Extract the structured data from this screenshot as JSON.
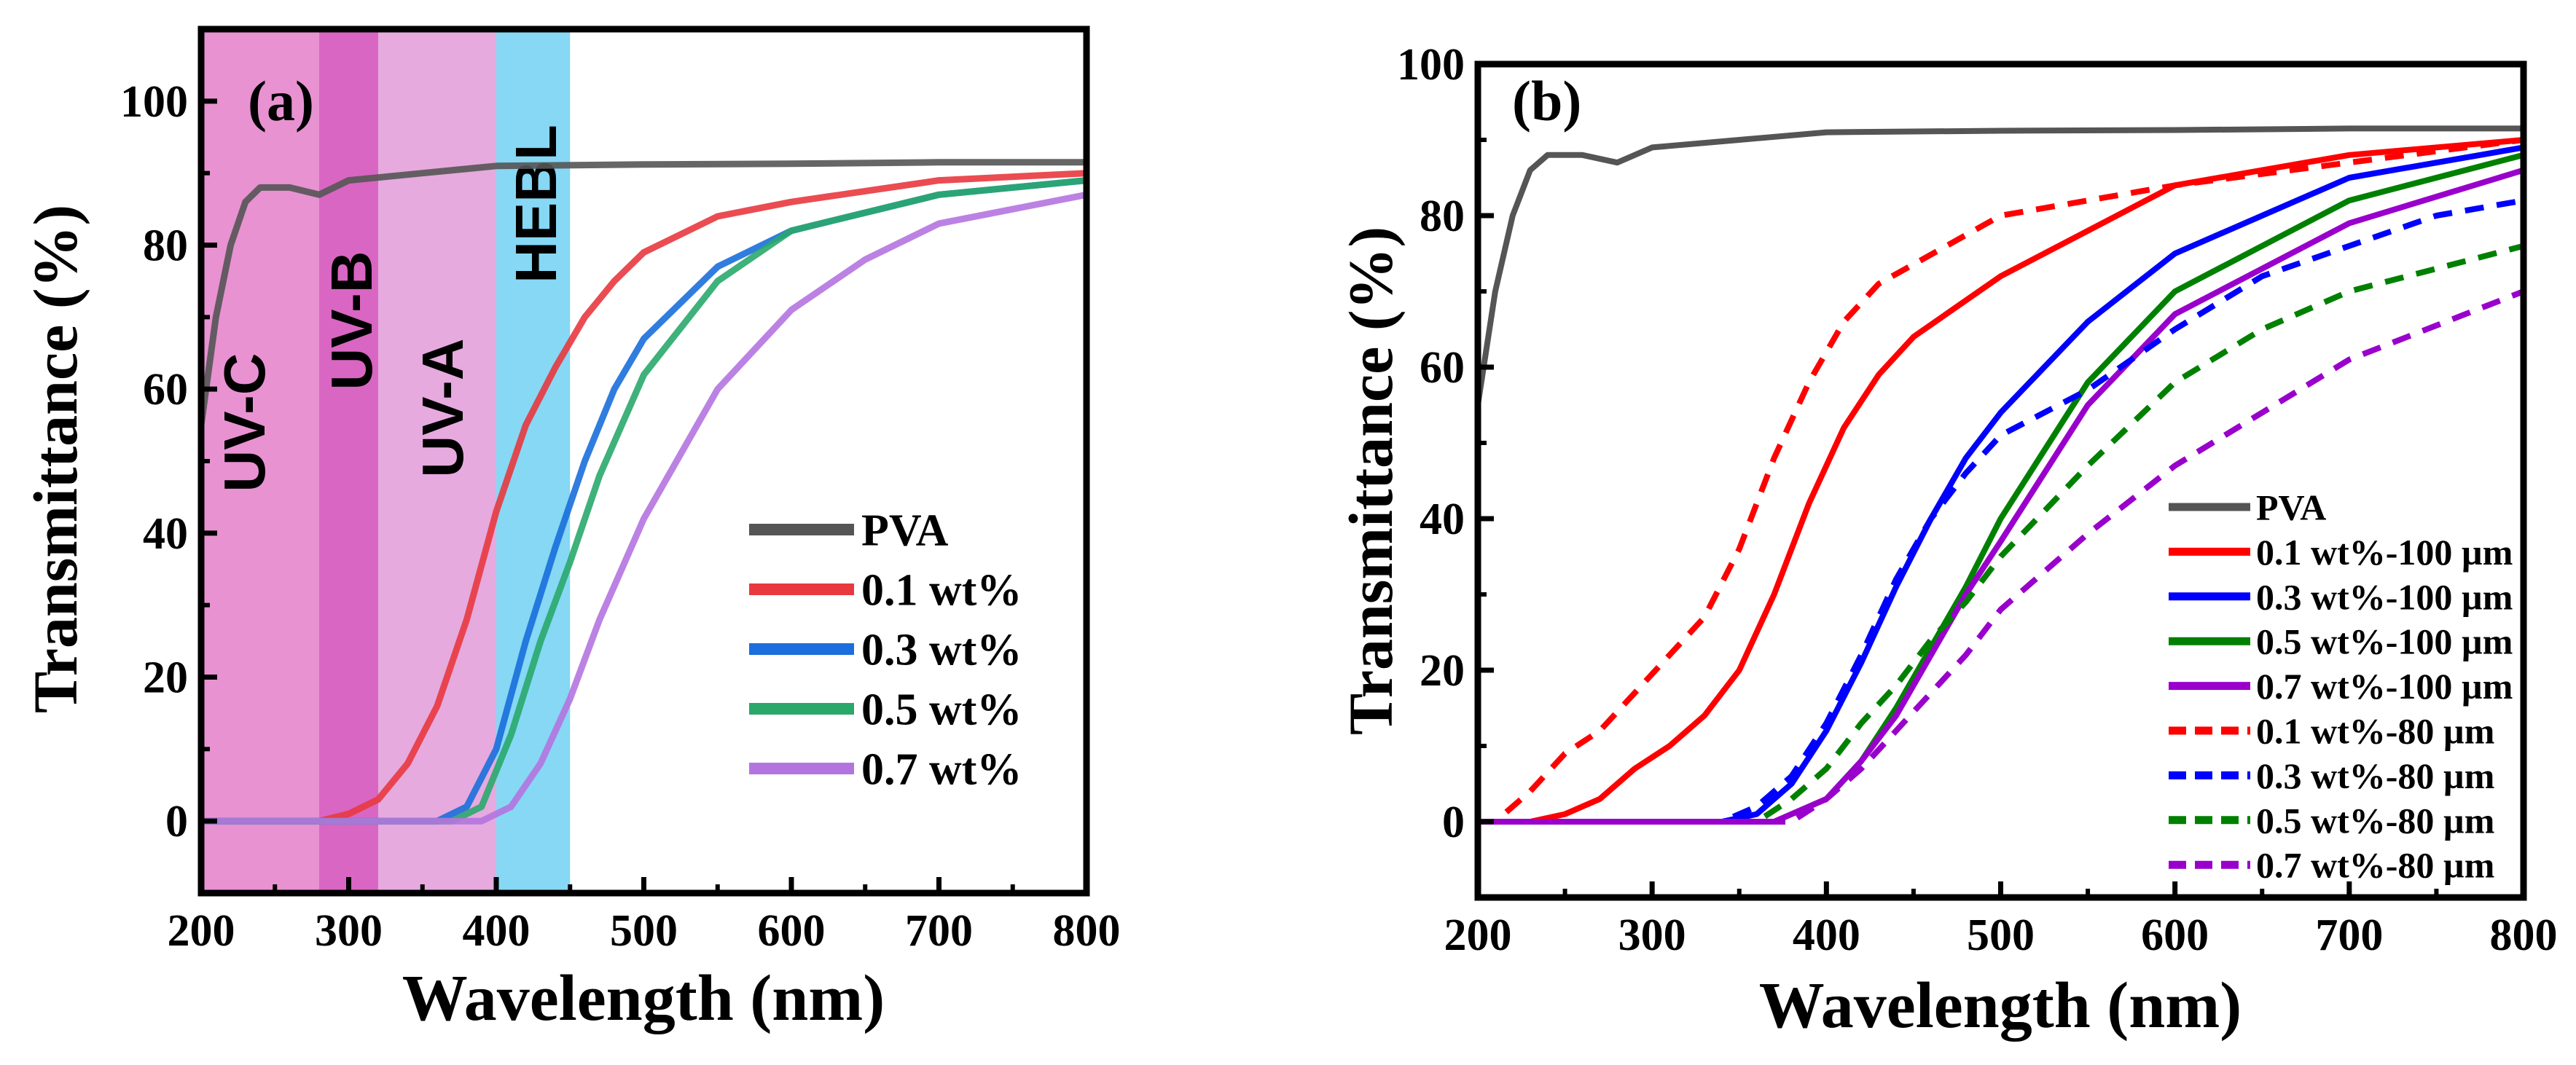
{
  "chart_data": [
    {
      "type": "line",
      "panel_label": "(a)",
      "xlabel": "Wavelength (nm)",
      "ylabel": "Transmittance (%)",
      "xlim": [
        200,
        800
      ],
      "ylim": [
        -10,
        110
      ],
      "xticks": [
        200,
        300,
        400,
        500,
        600,
        700,
        800
      ],
      "yticks": [
        0,
        20,
        40,
        60,
        80,
        100
      ],
      "legend_position": "center-right",
      "bands": [
        {
          "label": "UV-C",
          "range": [
            200,
            280
          ],
          "color": "#e892d2"
        },
        {
          "label": "UV-B",
          "range": [
            280,
            320
          ],
          "color": "#d966c2"
        },
        {
          "label": "UV-A",
          "range": [
            320,
            400
          ],
          "color": "#e6aadf"
        },
        {
          "label": "HEBL",
          "range": [
            400,
            450
          ],
          "color": "#86d8f4"
        }
      ],
      "series": [
        {
          "name": "PVA",
          "color": "#555555",
          "dash": false,
          "x": [
            200,
            210,
            220,
            230,
            240,
            260,
            280,
            300,
            350,
            400,
            500,
            600,
            700,
            800
          ],
          "y": [
            55,
            70,
            80,
            86,
            88,
            88,
            87,
            89,
            90,
            91,
            91.2,
            91.3,
            91.5,
            91.5
          ]
        },
        {
          "name": "0.1 wt%",
          "color": "#e8393f",
          "dash": false,
          "x": [
            200,
            280,
            300,
            320,
            340,
            360,
            380,
            400,
            420,
            440,
            460,
            480,
            500,
            550,
            600,
            700,
            800
          ],
          "y": [
            0,
            0,
            1,
            3,
            8,
            16,
            28,
            43,
            55,
            63,
            70,
            75,
            79,
            84,
            86,
            89,
            90
          ]
        },
        {
          "name": "0.3 wt%",
          "color": "#1a6fdc",
          "dash": false,
          "x": [
            200,
            360,
            380,
            400,
            420,
            440,
            460,
            480,
            500,
            550,
            600,
            700,
            800
          ],
          "y": [
            0,
            0,
            2,
            10,
            25,
            38,
            50,
            60,
            67,
            77,
            82,
            87,
            89
          ]
        },
        {
          "name": "0.5 wt%",
          "color": "#2aa86b",
          "dash": false,
          "x": [
            200,
            370,
            390,
            410,
            430,
            450,
            470,
            500,
            550,
            600,
            700,
            800
          ],
          "y": [
            0,
            0,
            2,
            12,
            25,
            36,
            48,
            62,
            75,
            82,
            87,
            89
          ]
        },
        {
          "name": "0.7 wt%",
          "color": "#b474e0",
          "dash": false,
          "x": [
            200,
            390,
            410,
            430,
            450,
            470,
            500,
            550,
            600,
            650,
            700,
            800
          ],
          "y": [
            0,
            0,
            2,
            8,
            17,
            28,
            42,
            60,
            71,
            78,
            83,
            87
          ]
        }
      ]
    },
    {
      "type": "line",
      "panel_label": "(b)",
      "xlabel": "Wavelength (nm)",
      "ylabel": "Transmittance (%)",
      "xlim": [
        200,
        800
      ],
      "ylim": [
        -10,
        100
      ],
      "xticks": [
        200,
        300,
        400,
        500,
        600,
        700,
        800
      ],
      "yticks": [
        0,
        20,
        40,
        60,
        80,
        100
      ],
      "legend_position": "bottom-right",
      "series": [
        {
          "name": "PVA",
          "color": "#555555",
          "dash": false,
          "x": [
            200,
            210,
            220,
            230,
            240,
            260,
            280,
            300,
            350,
            400,
            500,
            600,
            700,
            800
          ],
          "y": [
            55,
            70,
            80,
            86,
            88,
            88,
            87,
            89,
            90,
            91,
            91.2,
            91.3,
            91.5,
            91.5
          ]
        },
        {
          "name": "0.1 wt%-100 µm",
          "color": "#ff0000",
          "dash": false,
          "x": [
            200,
            230,
            250,
            270,
            290,
            310,
            330,
            350,
            370,
            390,
            410,
            430,
            450,
            500,
            550,
            600,
            700,
            800
          ],
          "y": [
            0,
            0,
            1,
            3,
            7,
            10,
            14,
            20,
            30,
            42,
            52,
            59,
            64,
            72,
            78,
            84,
            88,
            90
          ]
        },
        {
          "name": "0.3 wt%-100 µm",
          "color": "#0000ff",
          "dash": false,
          "x": [
            200,
            340,
            360,
            380,
            400,
            420,
            440,
            460,
            480,
            500,
            550,
            600,
            700,
            800
          ],
          "y": [
            0,
            0,
            1,
            5,
            12,
            21,
            31,
            40,
            48,
            54,
            66,
            75,
            85,
            89
          ]
        },
        {
          "name": "0.5 wt%-100 µm",
          "color": "#008000",
          "dash": false,
          "x": [
            200,
            370,
            400,
            420,
            440,
            460,
            480,
            500,
            550,
            600,
            700,
            800
          ],
          "y": [
            0,
            0,
            3,
            8,
            15,
            23,
            31,
            40,
            58,
            70,
            82,
            88
          ]
        },
        {
          "name": "0.7 wt%-100 µm",
          "color": "#9900cc",
          "dash": false,
          "x": [
            200,
            370,
            400,
            420,
            440,
            460,
            480,
            500,
            550,
            600,
            700,
            800
          ],
          "y": [
            0,
            0,
            3,
            8,
            14,
            22,
            30,
            37,
            55,
            67,
            79,
            86
          ]
        },
        {
          "name": "0.1 wt%-80 µm",
          "color": "#ff0000",
          "dash": true,
          "x": [
            200,
            210,
            230,
            250,
            270,
            290,
            310,
            330,
            350,
            370,
            390,
            410,
            430,
            500,
            600,
            800
          ],
          "y": [
            0,
            0,
            4,
            9,
            12,
            17,
            22,
            27,
            36,
            48,
            58,
            66,
            71,
            80,
            84,
            90
          ]
        },
        {
          "name": "0.3 wt%-80 µm",
          "color": "#0000ff",
          "dash": true,
          "x": [
            200,
            340,
            360,
            380,
            400,
            420,
            440,
            460,
            480,
            500,
            550,
            600,
            650,
            700,
            750,
            800
          ],
          "y": [
            0,
            0,
            2,
            6,
            13,
            22,
            32,
            40,
            46,
            51,
            57,
            65,
            72,
            76,
            80,
            82
          ]
        },
        {
          "name": "0.5 wt%-80 µm",
          "color": "#008000",
          "dash": true,
          "x": [
            200,
            360,
            380,
            400,
            420,
            440,
            460,
            480,
            500,
            550,
            600,
            650,
            700,
            800
          ],
          "y": [
            0,
            0,
            3,
            7,
            13,
            18,
            24,
            29,
            35,
            47,
            58,
            65,
            70,
            76
          ]
        },
        {
          "name": "0.7 wt%-80 µm",
          "color": "#9900cc",
          "dash": true,
          "x": [
            200,
            380,
            400,
            420,
            440,
            460,
            480,
            500,
            550,
            600,
            650,
            700,
            800
          ],
          "y": [
            0,
            0,
            3,
            7,
            12,
            17,
            22,
            28,
            38,
            47,
            54,
            61,
            70
          ]
        }
      ]
    }
  ]
}
